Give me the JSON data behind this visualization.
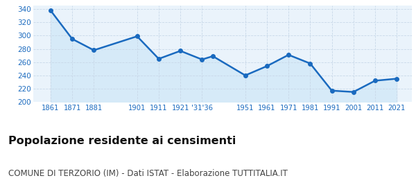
{
  "years": [
    1861,
    1871,
    1881,
    1901,
    1911,
    1921,
    1931,
    1936,
    1951,
    1961,
    1971,
    1981,
    1991,
    2001,
    2011,
    2021
  ],
  "population": [
    338,
    295,
    278,
    299,
    265,
    277,
    264,
    269,
    240,
    254,
    271,
    258,
    217,
    215,
    232,
    235
  ],
  "line_color": "#1a6abf",
  "fill_color": "#d6eaf8",
  "marker_color": "#1a6abf",
  "grid_color": "#c8d8e8",
  "background_color": "#eaf3fb",
  "ylim": [
    200,
    345
  ],
  "yticks": [
    200,
    220,
    240,
    260,
    280,
    300,
    320,
    340
  ],
  "xlim": [
    1853,
    2028
  ],
  "x_tick_positions": [
    1861,
    1871,
    1881,
    1901,
    1911,
    1921,
    1931,
    1951,
    1961,
    1971,
    1981,
    1991,
    2001,
    2011,
    2021
  ],
  "x_tick_labels": [
    "1861",
    "1871",
    "1881",
    "1901",
    "1911",
    "1921",
    "'31'36",
    "1951",
    "1961",
    "1971",
    "1981",
    "1991",
    "2001",
    "2011",
    "2021"
  ],
  "title": "Popolazione residente ai censimenti",
  "subtitle": "COMUNE DI TERZORIO (IM) - Dati ISTAT - Elaborazione TUTTITALIA.IT",
  "title_fontsize": 11.5,
  "subtitle_fontsize": 8.5,
  "title_color": "#111111",
  "subtitle_color": "#444444",
  "tick_label_color": "#1a6abf",
  "tick_fontsize": 7.2,
  "ytick_fontsize": 7.5,
  "line_width": 1.8,
  "marker_size": 4.0
}
